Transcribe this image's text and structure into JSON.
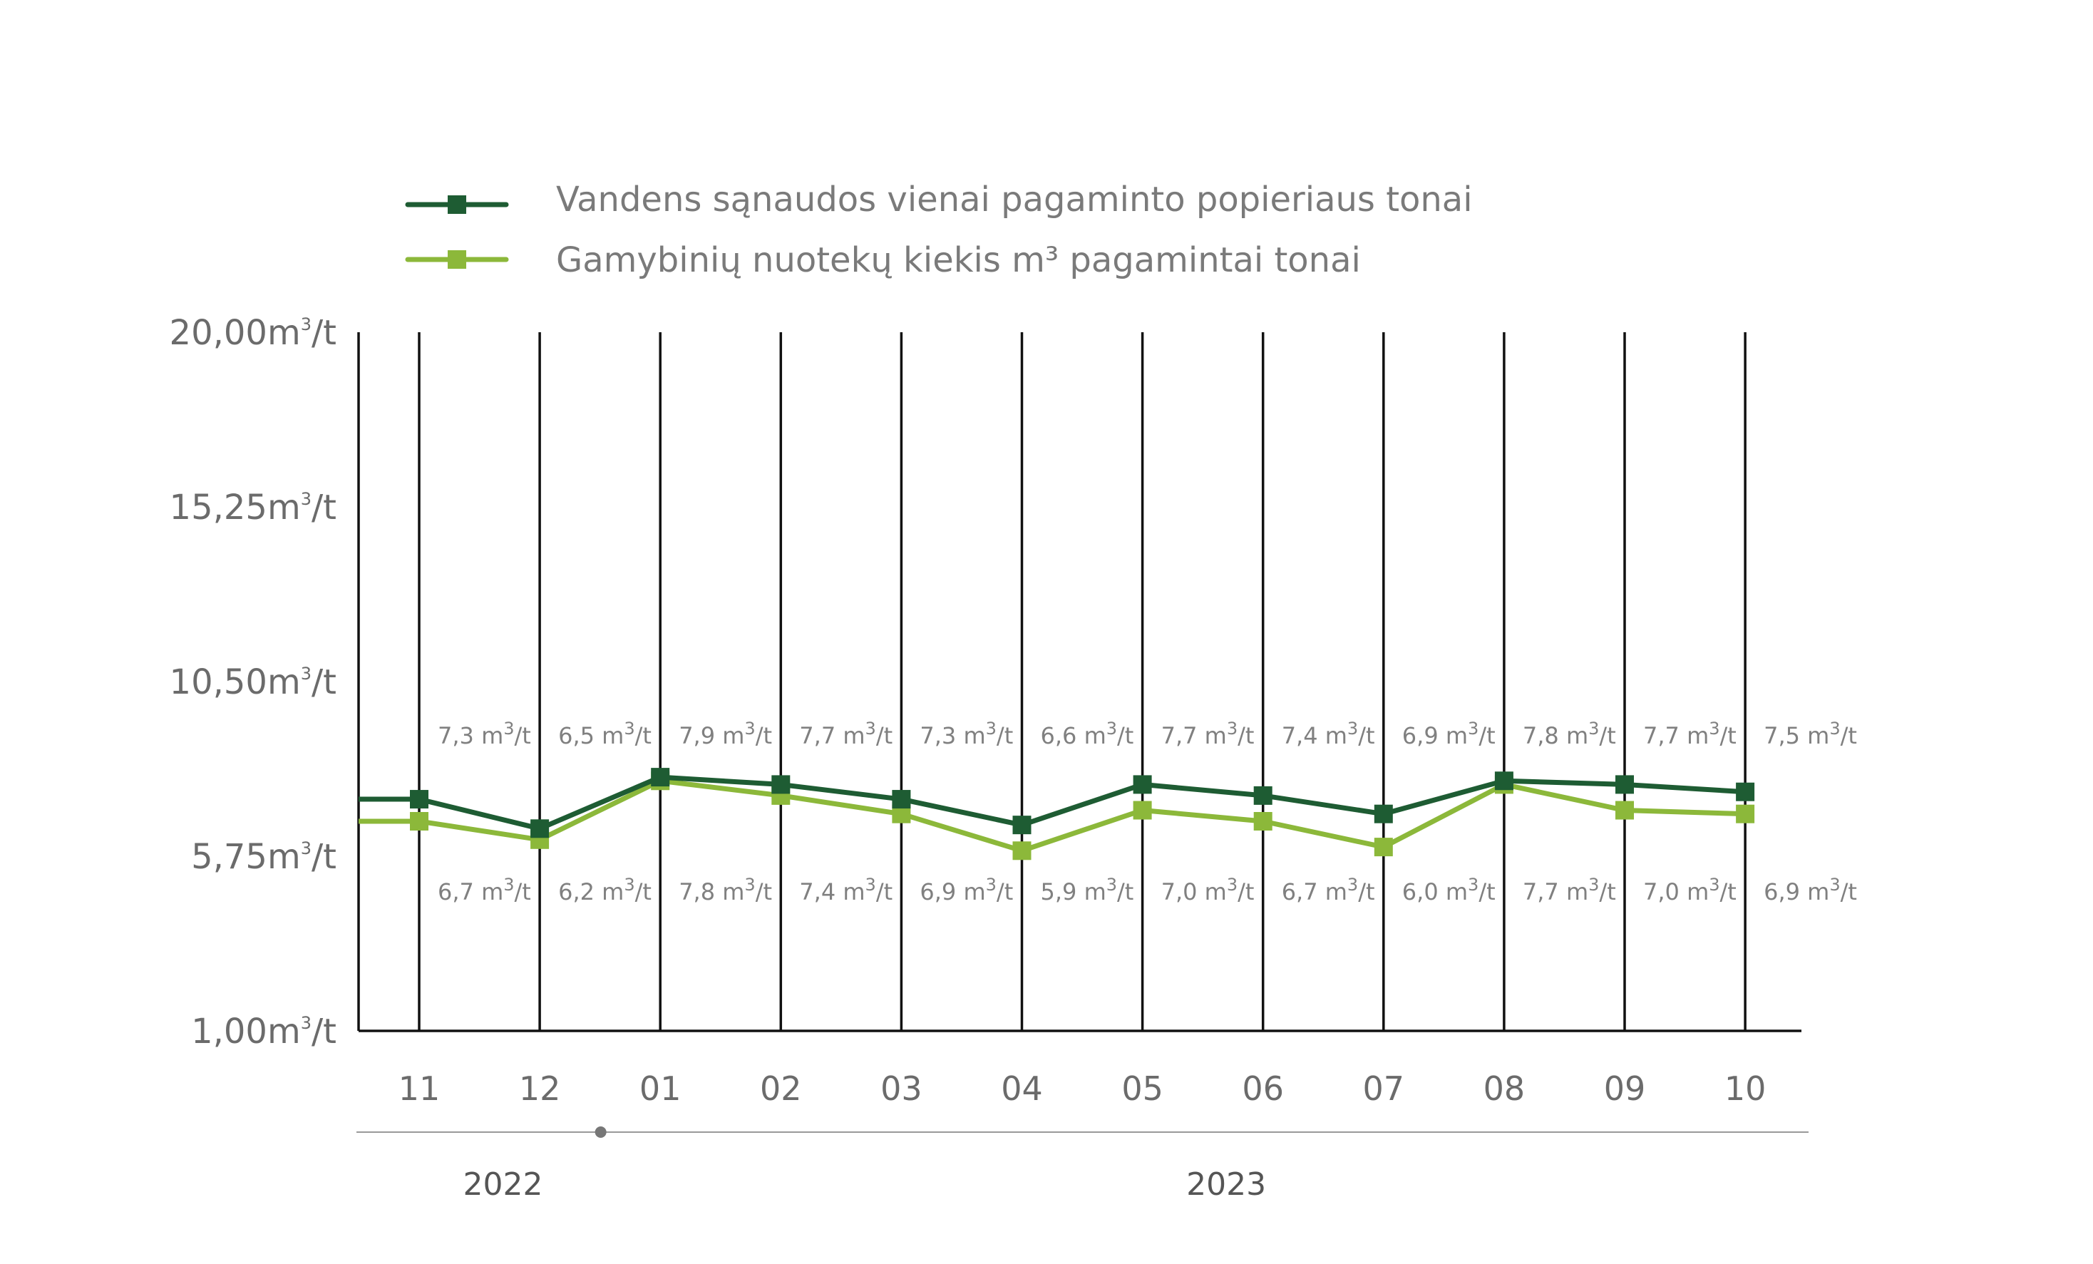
{
  "chart_data": {
    "type": "line",
    "categories": [
      "11",
      "12",
      "01",
      "02",
      "03",
      "04",
      "05",
      "06",
      "07",
      "08",
      "09",
      "10"
    ],
    "years": [
      {
        "label": "2022",
        "first": 0,
        "last": 1
      },
      {
        "label": "2023",
        "first": 2,
        "last": 11
      }
    ],
    "y_ticks": [
      1.0,
      5.75,
      10.5,
      15.25,
      20.0
    ],
    "y_tick_labels": [
      "1,00m³/t",
      "5,75m³/t",
      "10,50m³/t",
      "15,25m³/t",
      "20,00m³/t"
    ],
    "ylim": [
      1.0,
      20.0
    ],
    "value_unit": "m³/t",
    "grid": "vertical",
    "legend_position": "top",
    "series": [
      {
        "name": "Vandens sąnaudos vienai pagaminto popieriaus tonai",
        "color": "#1e5c33",
        "values": [
          7.3,
          6.5,
          7.9,
          7.7,
          7.3,
          6.6,
          7.7,
          7.4,
          6.9,
          7.8,
          7.7,
          7.5
        ],
        "labels": [
          "7,3 m³/t",
          "6,5 m³/t",
          "7,9 m³/t",
          "7,7 m³/t",
          "7,3 m³/t",
          "6,6 m³/t",
          "7,7 m³/t",
          "7,4 m³/t",
          "6,9 m³/t",
          "7,8 m³/t",
          "7,7 m³/t",
          "7,5 m³/t"
        ]
      },
      {
        "name": "Gamybinių nuotekų kiekis m³ pagamintai tonai",
        "color": "#8cb83a",
        "values": [
          6.7,
          6.2,
          7.8,
          7.4,
          6.9,
          5.9,
          7.0,
          6.7,
          6.0,
          7.7,
          7.0,
          6.9
        ],
        "labels": [
          "6,7 m³/t",
          "6,2 m³/t",
          "7,8 m³/t",
          "7,4 m³/t",
          "6,9 m³/t",
          "5,9 m³/t",
          "7,0 m³/t",
          "6,7 m³/t",
          "6,0 m³/t",
          "7,7 m³/t",
          "7,0 m³/t",
          "6,9 m³/t"
        ]
      }
    ]
  }
}
